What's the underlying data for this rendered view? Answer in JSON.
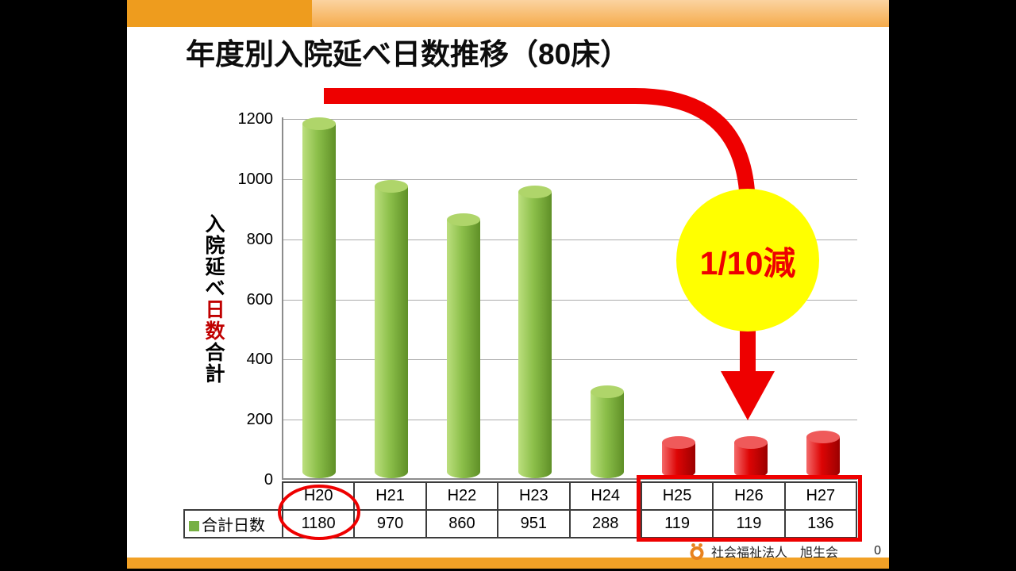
{
  "slide": {
    "title": "年度別入院延べ日数推移（80床）",
    "footer": {
      "organization": "社会福祉法人　旭生会",
      "page_number": "0"
    }
  },
  "annotations": {
    "reduction_callout": "1/10減",
    "annotation_color": "#EE0000",
    "callout_fill": "#FFFF00",
    "circled_category": "H20",
    "boxed_categories": [
      "H25",
      "H26",
      "H27"
    ]
  },
  "chart_data": {
    "type": "bar",
    "categories": [
      "H20",
      "H21",
      "H22",
      "H23",
      "H24",
      "H25",
      "H26",
      "H27"
    ],
    "series": [
      {
        "name": "合計日数",
        "values": [
          1180,
          970,
          860,
          951,
          288,
          119,
          119,
          136
        ]
      }
    ],
    "ylabel_parts": [
      {
        "text": "入院延べ",
        "color": "#000000"
      },
      {
        "text": "日数",
        "color": "#C00000"
      },
      {
        "text": "合計",
        "color": "#000000"
      }
    ],
    "ylim": [
      0,
      1200
    ],
    "yticks": [
      0,
      200,
      400,
      600,
      800,
      1000,
      1200
    ],
    "grid": true,
    "legend_position": "table-left",
    "bar_color_keys": [
      "green",
      "green",
      "green",
      "green",
      "green",
      "red",
      "red",
      "red"
    ],
    "palette": {
      "green": "#8CBF4A",
      "red": "#DD0000"
    },
    "legend_swatch_color": "#76B043"
  }
}
